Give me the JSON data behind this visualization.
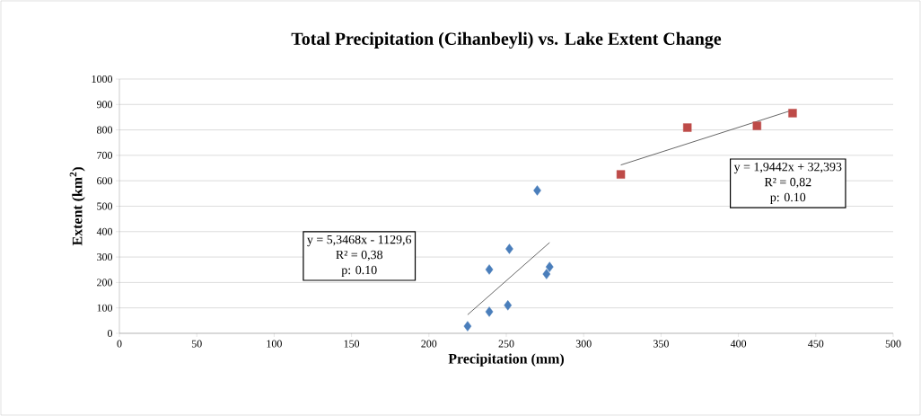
{
  "chart_data": {
    "type": "scatter",
    "title": "Total Precipitation (Cihanbeyli) vs. Lake Extent Change",
    "xlabel": "Precipitation (mm)",
    "ylabel": "Extent (km$^{2}$)",
    "xlim": [
      0,
      500
    ],
    "xticks": [
      0,
      50,
      100,
      150,
      200,
      250,
      300,
      350,
      400,
      450,
      500
    ],
    "ylim": [
      0,
      1000
    ],
    "yticks": [
      0,
      100,
      200,
      300,
      400,
      500,
      600,
      700,
      800,
      900,
      1000
    ],
    "grid": "y",
    "series": [
      {
        "marker": "diamond",
        "color": "#4a7ebb",
        "x": [
          225,
          239,
          239,
          251,
          252,
          270,
          276,
          278
        ],
        "values": [
          28,
          85,
          251,
          110,
          332,
          562,
          233,
          261
        ]
      },
      {
        "marker": "square",
        "color": "#be4b48",
        "x": [
          324,
          367,
          412,
          435
        ],
        "values": [
          625,
          809,
          816,
          866
        ]
      },
      {
        "type": "line",
        "marker": "none",
        "color": "#404040",
        "x": [
          225,
          278
        ],
        "values": [
          73,
          357
        ]
      },
      {
        "type": "line",
        "marker": "none",
        "color": "#404040",
        "x": [
          324,
          435
        ],
        "values": [
          662,
          878
        ]
      }
    ],
    "annotations": [
      "y = 5,3468x - 1129,6",
      "R² = 0,38",
      "p: 0.10",
      "y = 1,9442x + 32,393",
      "R² = 0,82",
      "p: 0.10"
    ]
  }
}
